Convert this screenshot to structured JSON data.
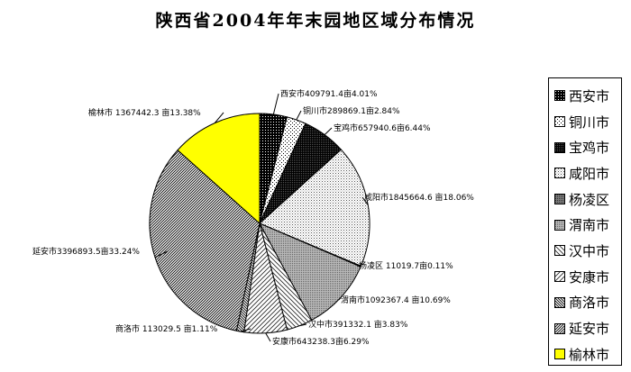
{
  "chart_data": {
    "type": "pie",
    "title": "陕西省2004年年末园地区域分布情况",
    "legend_position": "right",
    "slices": [
      {
        "name": "西安市",
        "value": 409791.4,
        "percent": 4.01,
        "label": "西安市409791.4亩4.01%",
        "pattern": "black-dots-white"
      },
      {
        "name": "铜川市",
        "value": 289869.1,
        "percent": 2.84,
        "label": "铜川市289869.1亩2.84%",
        "pattern": "white-dots-black"
      },
      {
        "name": "宝鸡市",
        "value": 657940.6,
        "percent": 6.44,
        "label": "宝鸡市657940.6亩6.44%",
        "pattern": "black-dense"
      },
      {
        "name": "咸阳市",
        "value": 1845664.6,
        "percent": 18.06,
        "label": "咸阳市1845664.6 亩18.06%",
        "pattern": "light-dots"
      },
      {
        "name": "杨凌区",
        "value": 11019.7,
        "percent": 0.11,
        "label": "杨凌区 11019.7亩0.11%",
        "pattern": "dark-gray"
      },
      {
        "name": "渭南市",
        "value": 1092367.4,
        "percent": 10.69,
        "label": "渭南市1092367.4 亩10.69%",
        "pattern": "medium-gray"
      },
      {
        "name": "汉中市",
        "value": 391332.1,
        "percent": 3.83,
        "label": "汉中市391332.1 亩3.83%",
        "pattern": "diag-left"
      },
      {
        "name": "安康市",
        "value": 643238.3,
        "percent": 6.29,
        "label": "安康市643238.3亩6.29%",
        "pattern": "diag-right"
      },
      {
        "name": "商洛市",
        "value": 113029.5,
        "percent": 1.11,
        "label": "商洛市 113029.5 亩1.11%",
        "pattern": "diag-left-dense"
      },
      {
        "name": "延安市",
        "value": 3396893.5,
        "percent": 33.24,
        "label": "延安市3396893.5亩33.24%",
        "pattern": "diag-right-dense"
      },
      {
        "name": "榆林市",
        "value": 1367442.3,
        "percent": 13.38,
        "label": "榆林市 1367442.3 亩13.38%",
        "pattern": "yellow"
      }
    ]
  }
}
